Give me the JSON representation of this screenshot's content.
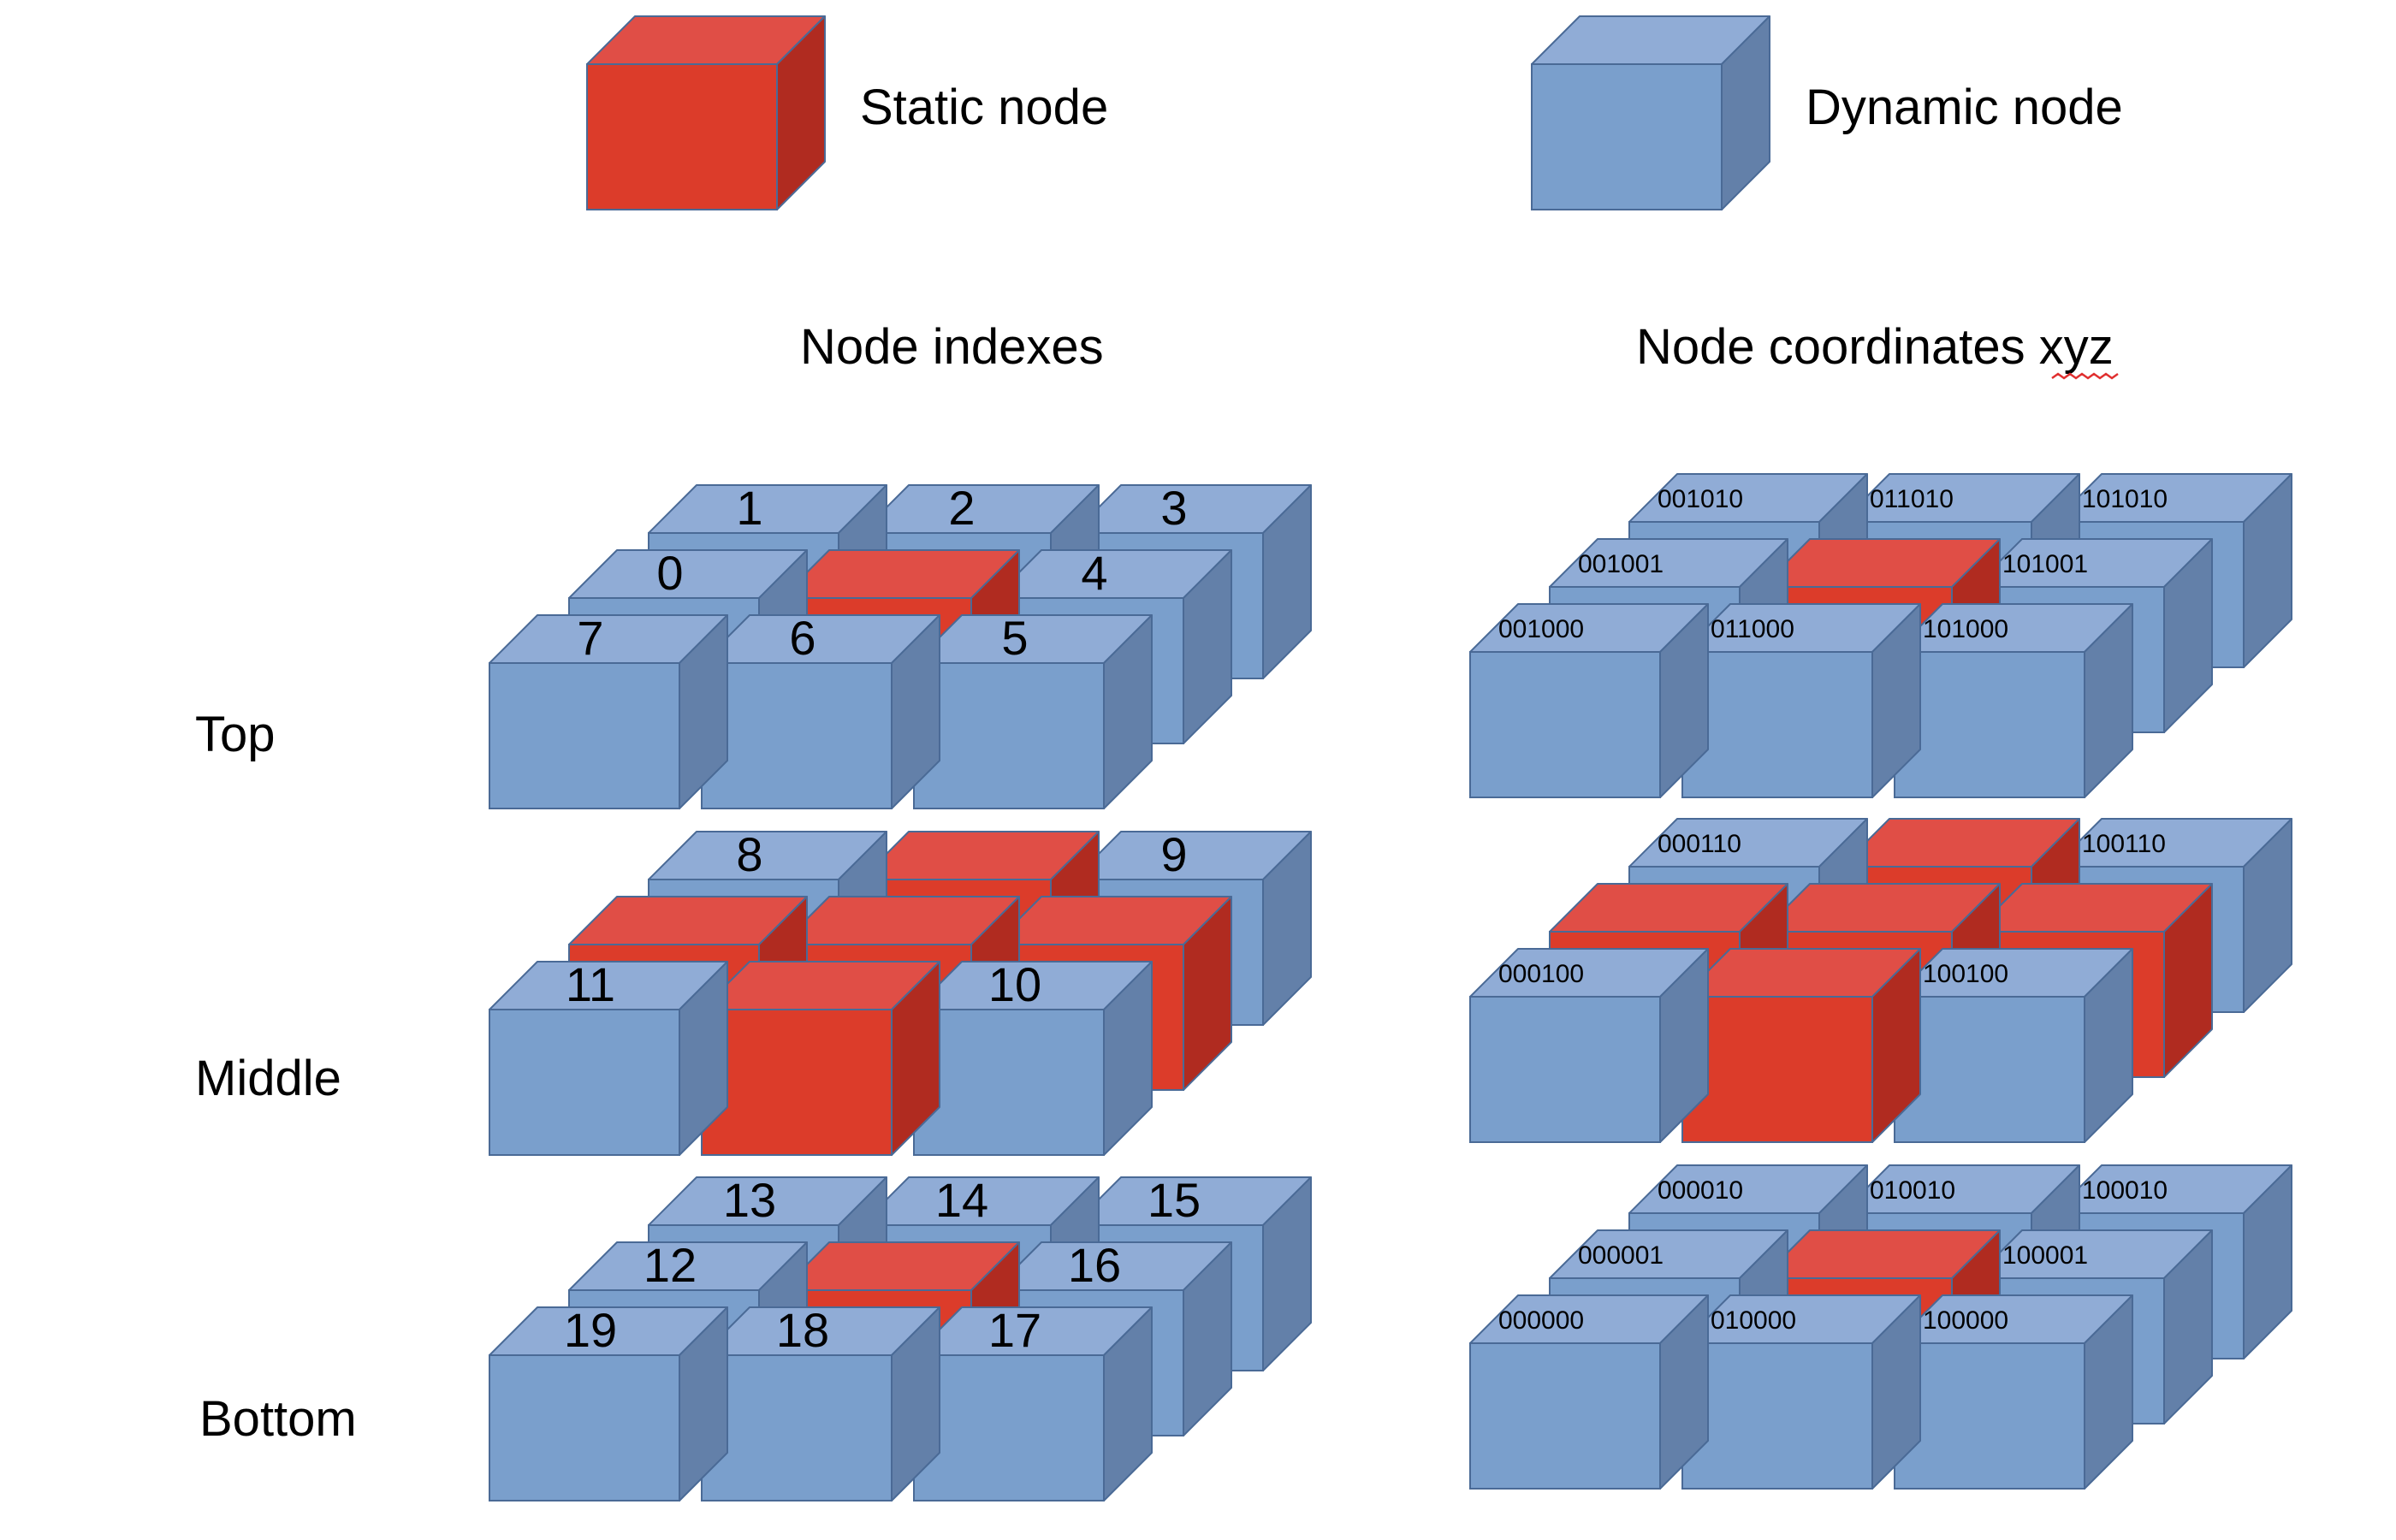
{
  "legend": {
    "static_label": "Static node",
    "dynamic_label": "Dynamic node"
  },
  "headers": {
    "indexes": "Node indexes",
    "coordinates": "Node coordinates xyz"
  },
  "layers": [
    {
      "label": "Top",
      "static_cells": [
        [
          1,
          1
        ]
      ],
      "index_labels": [
        [
          "1",
          "2",
          "3"
        ],
        [
          "0",
          "",
          "4"
        ],
        [
          "7",
          "6",
          "5"
        ]
      ],
      "coord_labels": [
        [
          "001010",
          "011010",
          "101010"
        ],
        [
          "001001",
          "",
          "101001"
        ],
        [
          "001000",
          "011000",
          "101000"
        ]
      ]
    },
    {
      "label": "Middle",
      "static_cells": [
        [
          0,
          1
        ],
        [
          1,
          0
        ],
        [
          1,
          1
        ],
        [
          1,
          2
        ],
        [
          2,
          1
        ]
      ],
      "index_labels": [
        [
          "8",
          "",
          "9"
        ],
        [
          "",
          "",
          ""
        ],
        [
          "11",
          "",
          "10"
        ]
      ],
      "coord_labels": [
        [
          "000110",
          "",
          "100110"
        ],
        [
          "",
          "",
          ""
        ],
        [
          "000100",
          "",
          "100100"
        ]
      ]
    },
    {
      "label": "Bottom",
      "static_cells": [
        [
          1,
          1
        ]
      ],
      "index_labels": [
        [
          "13",
          "14",
          "15"
        ],
        [
          "12",
          "",
          "16"
        ],
        [
          "19",
          "18",
          "17"
        ]
      ],
      "coord_labels": [
        [
          "000010",
          "010010",
          "100010"
        ],
        [
          "000001",
          "",
          "100001"
        ],
        [
          "000000",
          "010000",
          "100000"
        ]
      ]
    }
  ],
  "colors": {
    "static_front": "#dc3c2a",
    "static_top": "#e04e46",
    "static_side": "#b02b20",
    "dynamic_front": "#7a9fcc",
    "dynamic_top": "#90acd6",
    "dynamic_side": "#6380a9",
    "edge": "#4a6a96"
  }
}
